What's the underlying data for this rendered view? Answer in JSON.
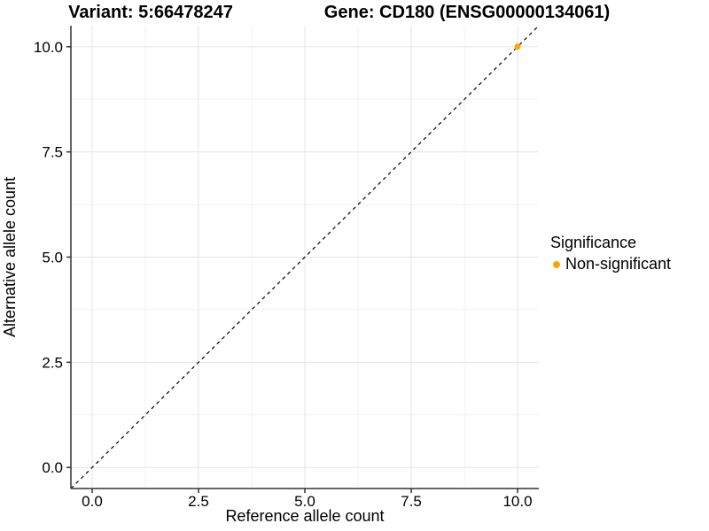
{
  "titles": {
    "variant": "Variant: 5:66478247",
    "gene": "Gene: CD180 (ENSG00000134061)"
  },
  "legend": {
    "title": "Significance",
    "items": [
      {
        "label": "Non-significant",
        "color": "#FFA500"
      }
    ]
  },
  "colors": {
    "point": "#FFA500",
    "axis_line": "#333333",
    "major_grid": "#e5e5e5",
    "minor_grid": "#f2f2f2",
    "abline": "#000000",
    "text": "#000000",
    "background": "#ffffff"
  },
  "chart_data": {
    "type": "scatter",
    "title_left": "Variant: 5:66478247",
    "title_right": "Gene: CD180 (ENSG00000134061)",
    "xlabel": "Reference allele count",
    "ylabel": "Alternative allele count",
    "xlim": [
      -0.5,
      10.5
    ],
    "ylim": [
      -0.5,
      10.5
    ],
    "xticks": [
      0.0,
      2.5,
      5.0,
      7.5,
      10.0
    ],
    "yticks": [
      0.0,
      2.5,
      5.0,
      7.5,
      10.0
    ],
    "xtick_labels": [
      "0.0",
      "2.5",
      "5.0",
      "7.5",
      "10.0"
    ],
    "ytick_labels": [
      "0.0",
      "2.5",
      "5.0",
      "7.5",
      "10.0"
    ],
    "x_minor_ticks": [
      1.25,
      3.75,
      6.25,
      8.75
    ],
    "y_minor_ticks": [
      1.25,
      3.75,
      6.25,
      8.75
    ],
    "grid": true,
    "legend_position": "right",
    "abline": {
      "slope": 1,
      "intercept": 0,
      "style": "dashed",
      "color": "#000000"
    },
    "series": [
      {
        "name": "Non-significant",
        "color": "#FFA500",
        "points": [
          {
            "x": 10,
            "y": 10
          }
        ]
      }
    ]
  }
}
